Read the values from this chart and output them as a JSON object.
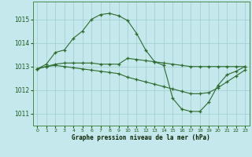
{
  "xlabel": "Graphe pression niveau de la mer (hPa)",
  "background_color": "#c5e8ed",
  "line_color": "#2d6b2d",
  "grid_color": "#9ecece",
  "ylim": [
    1010.5,
    1015.75
  ],
  "xlim": [
    -0.5,
    23.5
  ],
  "yticks": [
    1011,
    1012,
    1013,
    1014,
    1015
  ],
  "xticks": [
    0,
    1,
    2,
    3,
    4,
    5,
    6,
    7,
    8,
    9,
    10,
    11,
    12,
    13,
    14,
    15,
    16,
    17,
    18,
    19,
    20,
    21,
    22,
    23
  ],
  "series": [
    [
      1012.9,
      1013.1,
      1013.6,
      1013.7,
      1014.2,
      1014.5,
      1015.0,
      1015.2,
      1015.25,
      1015.15,
      1014.95,
      1014.4,
      1013.7,
      1013.2,
      1013.05,
      1011.65,
      1011.2,
      1011.1,
      1011.1,
      1011.5,
      1012.2,
      1012.65,
      1012.8,
      1013.0
    ],
    [
      1012.9,
      1013.0,
      1013.1,
      1013.15,
      1013.15,
      1013.15,
      1013.15,
      1013.1,
      1013.1,
      1013.1,
      1013.35,
      1013.3,
      1013.25,
      1013.2,
      1013.15,
      1013.1,
      1013.05,
      1013.0,
      1013.0,
      1013.0,
      1013.0,
      1013.0,
      1013.0,
      1013.0
    ],
    [
      1012.9,
      1013.0,
      1013.05,
      1013.0,
      1012.95,
      1012.9,
      1012.85,
      1012.8,
      1012.75,
      1012.7,
      1012.55,
      1012.45,
      1012.35,
      1012.25,
      1012.15,
      1012.05,
      1011.95,
      1011.85,
      1011.85,
      1011.9,
      1012.1,
      1012.35,
      1012.6,
      1012.85
    ]
  ]
}
